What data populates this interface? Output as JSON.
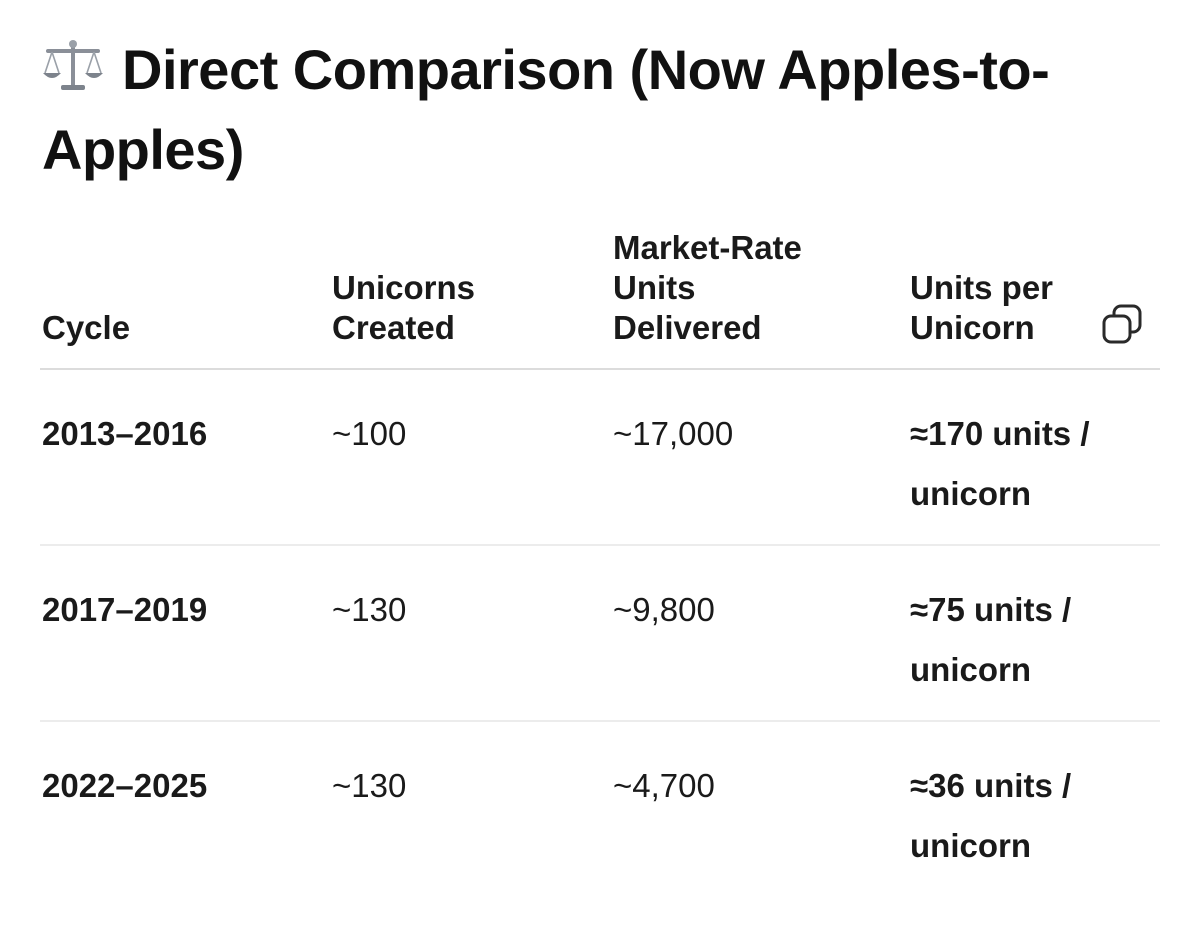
{
  "heading": {
    "icon": "balance-scale-icon",
    "text": "Direct Comparison (Now Apples-to-Apples)"
  },
  "table": {
    "columns": [
      "Cycle",
      "Unicorns Created",
      "Market-Rate Units Delivered",
      "Units per Unicorn"
    ],
    "rows": [
      {
        "cycle": "2013–2016",
        "unicorns": "~100",
        "units": "~17,000",
        "per_unicorn": "≈170 units / unicorn"
      },
      {
        "cycle": "2017–2019",
        "unicorns": "~130",
        "units": "~9,800",
        "per_unicorn": "≈75 units / unicorn"
      },
      {
        "cycle": "2022–2025",
        "unicorns": "~130",
        "units": "~4,700",
        "per_unicorn": "≈36 units / unicorn"
      }
    ],
    "copy_icon": "copy-icon"
  }
}
